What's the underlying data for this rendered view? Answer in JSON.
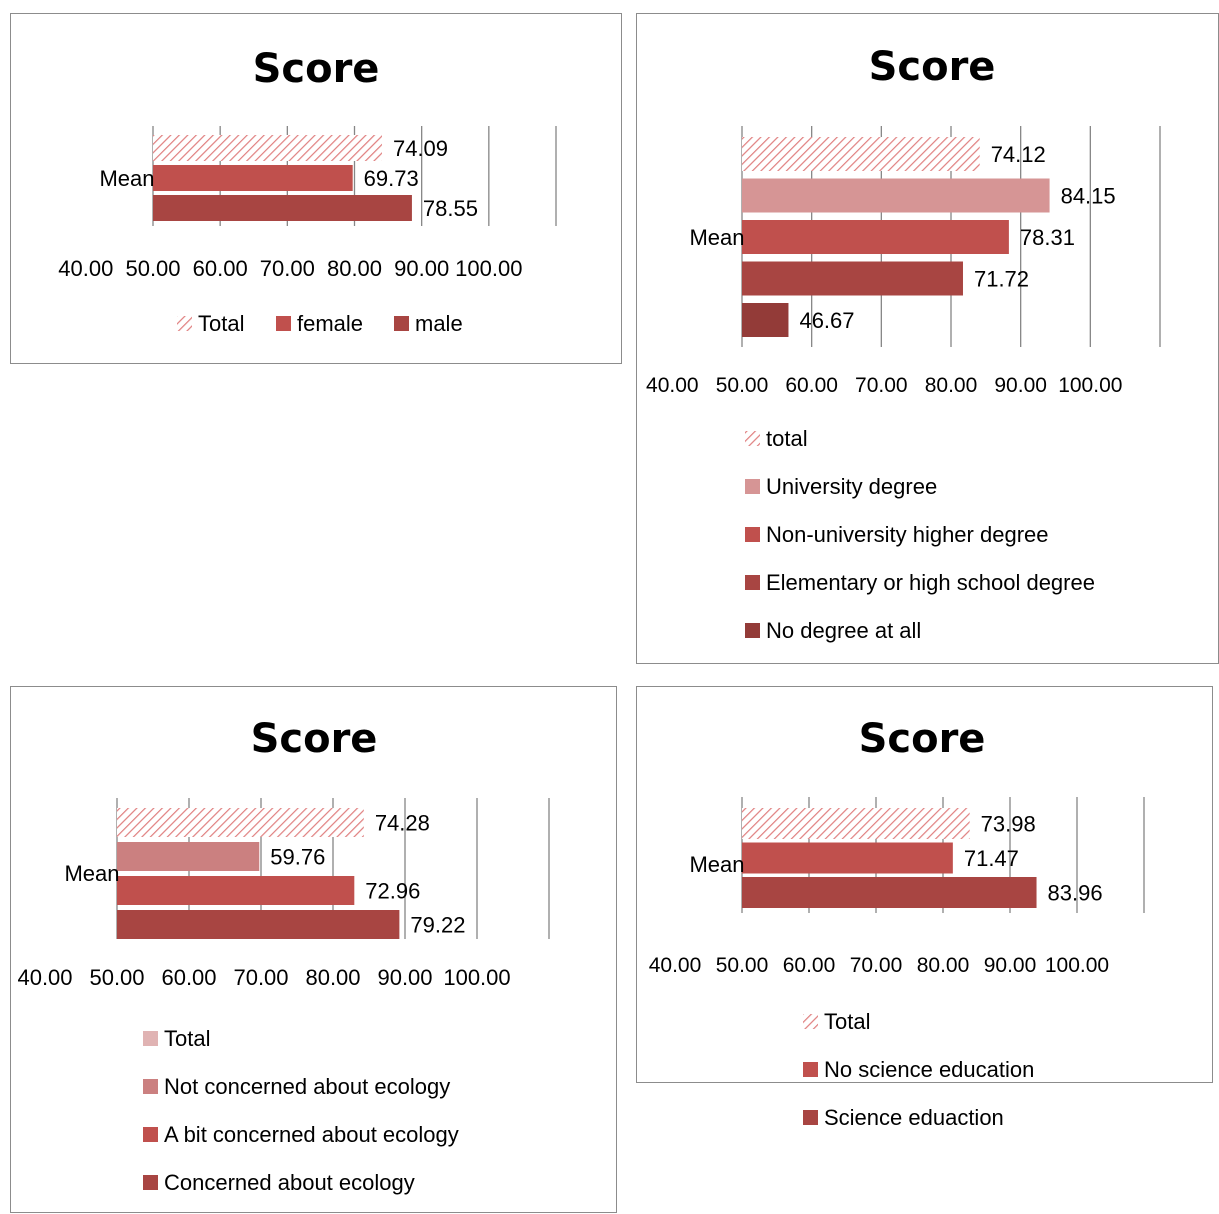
{
  "colors": {
    "total_hatch": "#e07f7f",
    "total_solid": "#e0b3b3",
    "light": "#d69595",
    "light2": "#cb8080",
    "mid": "#c0504d",
    "dark": "#a84542",
    "darkest": "#933b38",
    "grid": "#868686"
  },
  "chart_data": [
    {
      "id": "gender",
      "type": "bar",
      "orientation": "horizontal",
      "title": "Score",
      "categories": [
        "Mean"
      ],
      "xlim": [
        40,
        100
      ],
      "xticks": [
        "40.00",
        "50.00",
        "60.00",
        "70.00",
        "80.00",
        "90.00",
        "100.00"
      ],
      "legend_placement": "bottom",
      "series": [
        {
          "name": "Total",
          "values": [
            74.09
          ],
          "label": "74.09",
          "style": "hatch"
        },
        {
          "name": "female",
          "values": [
            69.73
          ],
          "label": "69.73",
          "style": "mid"
        },
        {
          "name": "male",
          "values": [
            78.55
          ],
          "label": "78.55",
          "style": "dark"
        }
      ]
    },
    {
      "id": "education",
      "type": "bar",
      "orientation": "horizontal",
      "title": "Score",
      "categories": [
        "Mean"
      ],
      "xlim": [
        40,
        100
      ],
      "xticks": [
        "40.00",
        "50.00",
        "60.00",
        "70.00",
        "80.00",
        "90.00",
        "100.00"
      ],
      "legend_placement": "bottom",
      "series": [
        {
          "name": "total",
          "values": [
            74.12
          ],
          "label": "74.12",
          "style": "hatch"
        },
        {
          "name": "University degree",
          "values": [
            84.15
          ],
          "label": "84.15",
          "style": "light"
        },
        {
          "name": "Non-university higher degree",
          "values": [
            78.31
          ],
          "label": "78.31",
          "style": "mid"
        },
        {
          "name": "Elementary or high school degree",
          "values": [
            71.72
          ],
          "label": "71.72",
          "style": "dark"
        },
        {
          "name": "No degree at all",
          "values": [
            46.67
          ],
          "label": "46.67",
          "style": "darkest"
        }
      ]
    },
    {
      "id": "ecology",
      "type": "bar",
      "orientation": "horizontal",
      "title": "Score",
      "categories": [
        "Mean"
      ],
      "xlim": [
        40,
        100
      ],
      "xticks": [
        "40.00",
        "50.00",
        "60.00",
        "70.00",
        "80.00",
        "90.00",
        "100.00"
      ],
      "legend_placement": "bottom",
      "series": [
        {
          "name": "Total",
          "values": [
            74.28
          ],
          "label": "74.28",
          "style": "hatch",
          "legend_style": "total_solid"
        },
        {
          "name": "Not concerned about ecology",
          "values": [
            59.76
          ],
          "label": "59.76",
          "style": "light2"
        },
        {
          "name": "A bit concerned about ecology",
          "values": [
            72.96
          ],
          "label": "72.96",
          "style": "mid"
        },
        {
          "name": "Concerned about ecology",
          "values": [
            79.22
          ],
          "label": "79.22",
          "style": "dark"
        }
      ]
    },
    {
      "id": "science",
      "type": "bar",
      "orientation": "horizontal",
      "title": "Score",
      "categories": [
        "Mean"
      ],
      "xlim": [
        40,
        100
      ],
      "xticks": [
        "40.00",
        "50.00",
        "60.00",
        "70.00",
        "80.00",
        "90.00",
        "100.00"
      ],
      "legend_placement": "bottom",
      "series": [
        {
          "name": "Total",
          "values": [
            73.98
          ],
          "label": "73.98",
          "style": "hatch"
        },
        {
          "name": "No science education",
          "values": [
            71.47
          ],
          "label": "71.47",
          "style": "mid"
        },
        {
          "name": "Science eduaction",
          "values": [
            83.96
          ],
          "label": "83.96",
          "style": "dark"
        }
      ]
    }
  ]
}
